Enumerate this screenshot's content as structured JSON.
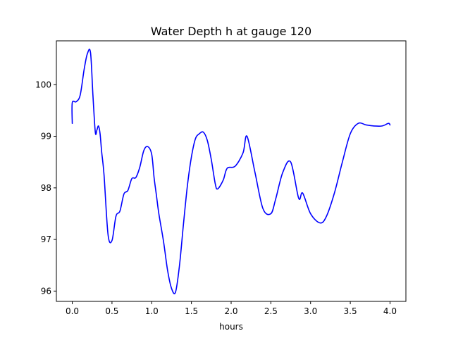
{
  "chart_data": {
    "type": "line",
    "title": "Water Depth h at gauge 120",
    "xlabel": "hours",
    "ylabel": "",
    "xlim": [
      -0.2,
      4.2
    ],
    "ylim": [
      95.8,
      100.85
    ],
    "xticks": [
      0.0,
      0.5,
      1.0,
      1.5,
      2.0,
      2.5,
      3.0,
      3.5,
      4.0
    ],
    "xtick_labels": [
      "0.0",
      "0.5",
      "1.0",
      "1.5",
      "2.0",
      "2.5",
      "3.0",
      "3.5",
      "4.0"
    ],
    "yticks": [
      96,
      97,
      98,
      99,
      100
    ],
    "ytick_labels": [
      "96",
      "97",
      "98",
      "99",
      "100"
    ],
    "grid": false,
    "series": [
      {
        "color": "#0000ff",
        "x": [
          0.0,
          0.0,
          0.05,
          0.1,
          0.15,
          0.19,
          0.23,
          0.26,
          0.29,
          0.31,
          0.33,
          0.35,
          0.37,
          0.4,
          0.45,
          0.5,
          0.55,
          0.6,
          0.65,
          0.7,
          0.75,
          0.8,
          0.85,
          0.9,
          0.95,
          1.0,
          1.03,
          1.06,
          1.09,
          1.15,
          1.2,
          1.25,
          1.3,
          1.35,
          1.4,
          1.45,
          1.5,
          1.55,
          1.6,
          1.65,
          1.7,
          1.75,
          1.8,
          1.83,
          1.9,
          1.95,
          2.05,
          2.15,
          2.2,
          2.3,
          2.4,
          2.5,
          2.56,
          2.65,
          2.75,
          2.85,
          2.9,
          3.0,
          3.12,
          3.2,
          3.3,
          3.4,
          3.5,
          3.6,
          3.7,
          3.8,
          3.9,
          3.98,
          4.0
        ],
        "y": [
          99.25,
          99.65,
          99.67,
          99.8,
          100.3,
          100.6,
          100.62,
          99.8,
          99.08,
          99.12,
          99.2,
          99.05,
          98.7,
          98.25,
          97.1,
          96.98,
          97.45,
          97.55,
          97.88,
          97.95,
          98.18,
          98.2,
          98.4,
          98.72,
          98.8,
          98.65,
          98.2,
          97.85,
          97.5,
          96.95,
          96.4,
          96.05,
          95.98,
          96.5,
          97.3,
          98.05,
          98.6,
          98.95,
          99.05,
          99.08,
          98.92,
          98.55,
          98.08,
          97.98,
          98.15,
          98.38,
          98.42,
          98.68,
          99.0,
          98.3,
          97.6,
          97.5,
          97.78,
          98.3,
          98.5,
          97.8,
          97.9,
          97.5,
          97.32,
          97.45,
          97.9,
          98.5,
          99.05,
          99.25,
          99.22,
          99.2,
          99.2,
          99.25,
          99.22
        ]
      }
    ]
  }
}
